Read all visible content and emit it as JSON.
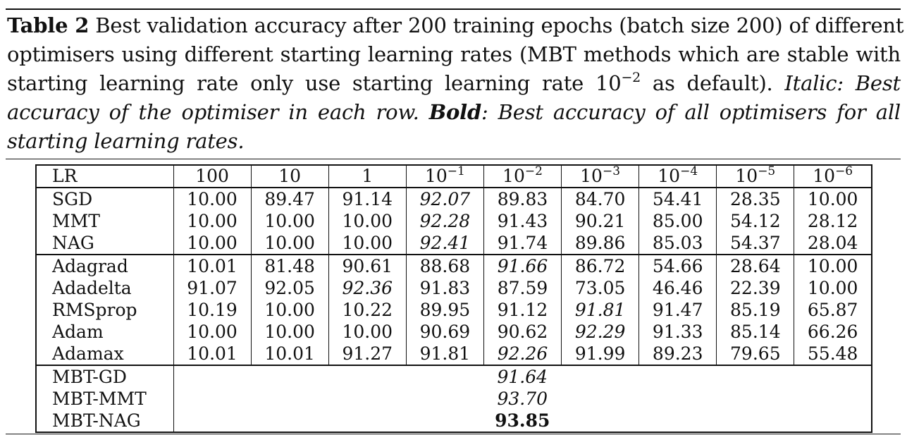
{
  "caption": {
    "label": "Table 2",
    "line1_rest": " Best validation accuracy after 200 training epochs (batch size 200) of different",
    "line2": "optimisers using different starting learning rates (MBT methods which are stable with",
    "line3_a": "starting learning rate only use starting learning rate 10",
    "line3_exp": "−2",
    "line3_b": " as default). ",
    "line3_italic": "Italic: Best",
    "line4_italic": "accuracy of the optimiser in each row. ",
    "line4_bold": "Bold",
    "line4_italic2": ": Best accuracy of all optimisers for all",
    "line5_italic": "starting learning rates."
  },
  "table": {
    "corner": "LR",
    "columns": [
      {
        "base": "100",
        "exp": ""
      },
      {
        "base": "10",
        "exp": ""
      },
      {
        "base": "1",
        "exp": ""
      },
      {
        "base": "10",
        "exp": "−1"
      },
      {
        "base": "10",
        "exp": "−2"
      },
      {
        "base": "10",
        "exp": "−3"
      },
      {
        "base": "10",
        "exp": "−4"
      },
      {
        "base": "10",
        "exp": "−5"
      },
      {
        "base": "10",
        "exp": "−6"
      }
    ],
    "groups": [
      [
        {
          "name": "SGD",
          "values": [
            "10.00",
            "89.47",
            "91.14",
            "92.07",
            "89.83",
            "84.70",
            "54.41",
            "28.35",
            "10.00"
          ],
          "italic_index": 3
        },
        {
          "name": "MMT",
          "values": [
            "10.00",
            "10.00",
            "10.00",
            "92.28",
            "91.43",
            "90.21",
            "85.00",
            "54.12",
            "28.12"
          ],
          "italic_index": 3
        },
        {
          "name": "NAG",
          "values": [
            "10.00",
            "10.00",
            "10.00",
            "92.41",
            "91.74",
            "89.86",
            "85.03",
            "54.37",
            "28.04"
          ],
          "italic_index": 3
        }
      ],
      [
        {
          "name": "Adagrad",
          "values": [
            "10.01",
            "81.48",
            "90.61",
            "88.68",
            "91.66",
            "86.72",
            "54.66",
            "28.64",
            "10.00"
          ],
          "italic_index": 4
        },
        {
          "name": "Adadelta",
          "values": [
            "91.07",
            "92.05",
            "92.36",
            "91.83",
            "87.59",
            "73.05",
            "46.46",
            "22.39",
            "10.00"
          ],
          "italic_index": 2
        },
        {
          "name": "RMSprop",
          "values": [
            "10.19",
            "10.00",
            "10.22",
            "89.95",
            "91.12",
            "91.81",
            "91.47",
            "85.19",
            "65.87"
          ],
          "italic_index": 5
        },
        {
          "name": "Adam",
          "values": [
            "10.00",
            "10.00",
            "10.00",
            "90.69",
            "90.62",
            "92.29",
            "91.33",
            "85.14",
            "66.26"
          ],
          "italic_index": 5
        },
        {
          "name": "Adamax",
          "values": [
            "10.01",
            "10.01",
            "91.27",
            "91.81",
            "92.26",
            "91.99",
            "89.23",
            "79.65",
            "55.48"
          ],
          "italic_index": 4
        }
      ]
    ],
    "mbt": [
      {
        "name": "MBT-GD",
        "value": "91.64",
        "style": "italic"
      },
      {
        "name": "MBT-MMT",
        "value": "93.70",
        "style": "italic"
      },
      {
        "name": "MBT-NAG",
        "value": "93.85",
        "style": "bold"
      }
    ]
  }
}
